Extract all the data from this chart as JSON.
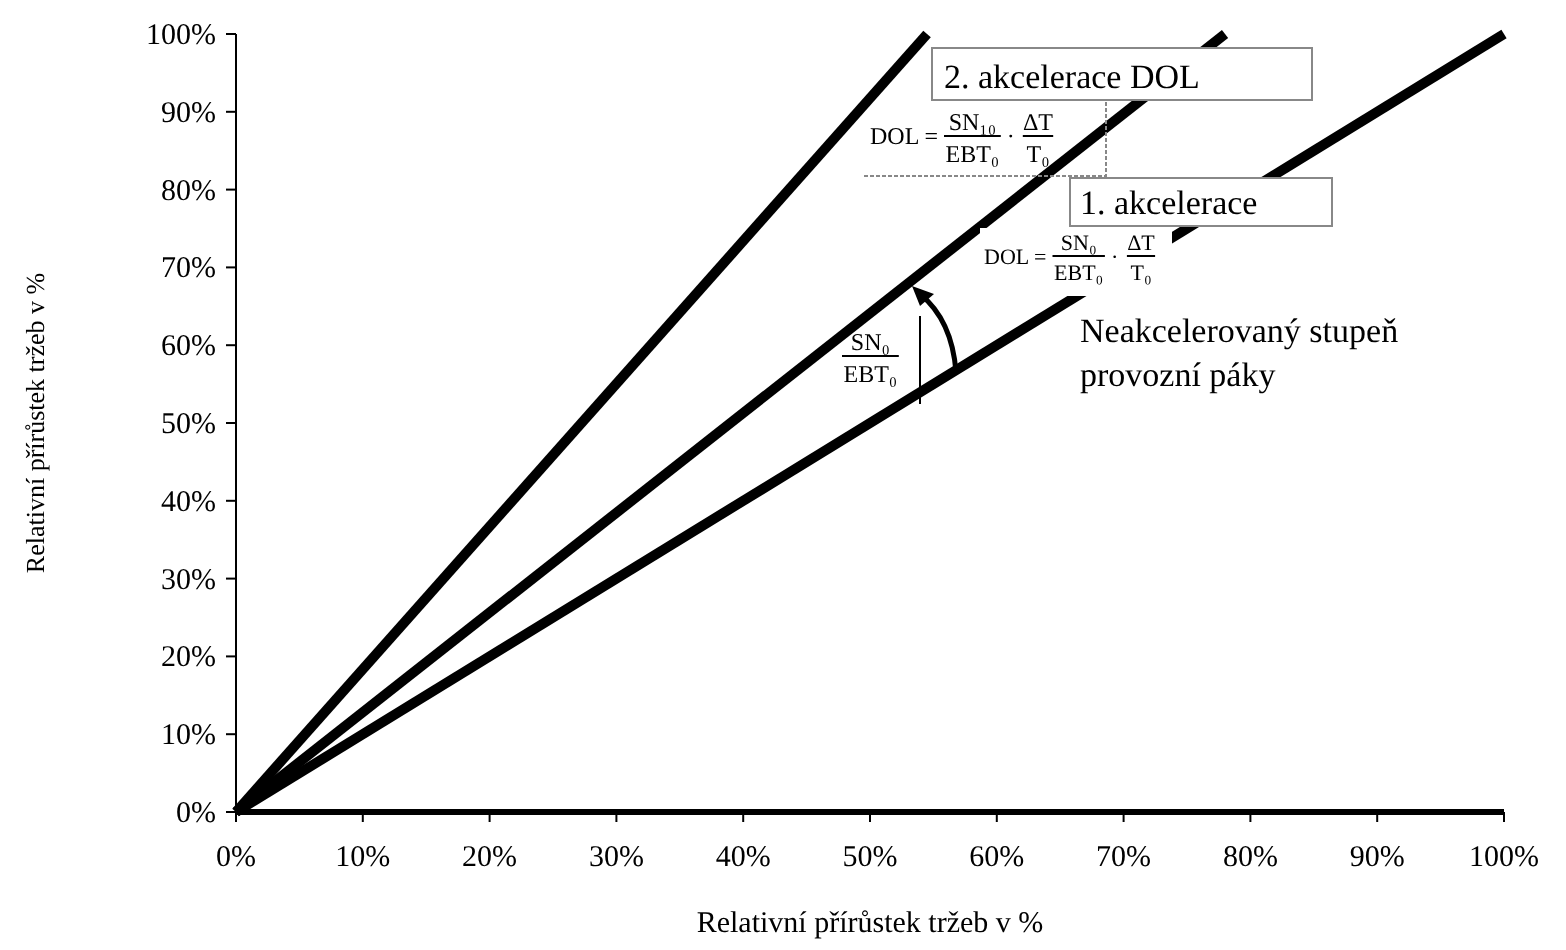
{
  "chart_data": {
    "type": "line",
    "xlabel": "Relativní přírůstek tržeb v %",
    "ylabel": "Relativní přírůstek tržeb v %",
    "xlim": [
      0,
      100
    ],
    "ylim": [
      0,
      100
    ],
    "xticks": [
      {
        "value": 0,
        "label": "0%"
      },
      {
        "value": 10,
        "label": "10%"
      },
      {
        "value": 20,
        "label": "20%"
      },
      {
        "value": 30,
        "label": "30%"
      },
      {
        "value": 40,
        "label": "40%"
      },
      {
        "value": 50,
        "label": "50%"
      },
      {
        "value": 60,
        "label": "60%"
      },
      {
        "value": 70,
        "label": "70%"
      },
      {
        "value": 80,
        "label": "80%"
      },
      {
        "value": 90,
        "label": "90%"
      },
      {
        "value": 100,
        "label": "100%"
      }
    ],
    "yticks": [
      {
        "value": 0,
        "label": "0%"
      },
      {
        "value": 10,
        "label": "10%"
      },
      {
        "value": 20,
        "label": "20%"
      },
      {
        "value": 30,
        "label": "30%"
      },
      {
        "value": 40,
        "label": "40%"
      },
      {
        "value": 50,
        "label": "50%"
      },
      {
        "value": 60,
        "label": "60%"
      },
      {
        "value": 70,
        "label": "70%"
      },
      {
        "value": 80,
        "label": "80%"
      },
      {
        "value": 90,
        "label": "90%"
      },
      {
        "value": 100,
        "label": "100%"
      }
    ],
    "series": [
      {
        "color": "#000000",
        "x": [
          0,
          54.5
        ],
        "values": [
          0,
          100
        ]
      },
      {
        "color": "#000000",
        "x": [
          0,
          78
        ],
        "values": [
          0,
          100
        ]
      },
      {
        "color": "#000000",
        "x": [
          0,
          100
        ],
        "values": [
          0,
          100
        ]
      }
    ],
    "annotations": [
      "2. akcelerace DOL",
      "DOL =",
      "SN₁₀",
      "EBT₀",
      "·",
      "ΔT",
      "T₀",
      "1. akcelerace",
      "DOL =",
      "SN₀",
      "EBT₀",
      "·",
      "ΔT",
      "T₀",
      "Neakcelerovaný stupeň\nprovozní páky",
      "SN₀",
      "EBT₀"
    ],
    "marker": "none",
    "line_style": "solid",
    "grid": false
  }
}
